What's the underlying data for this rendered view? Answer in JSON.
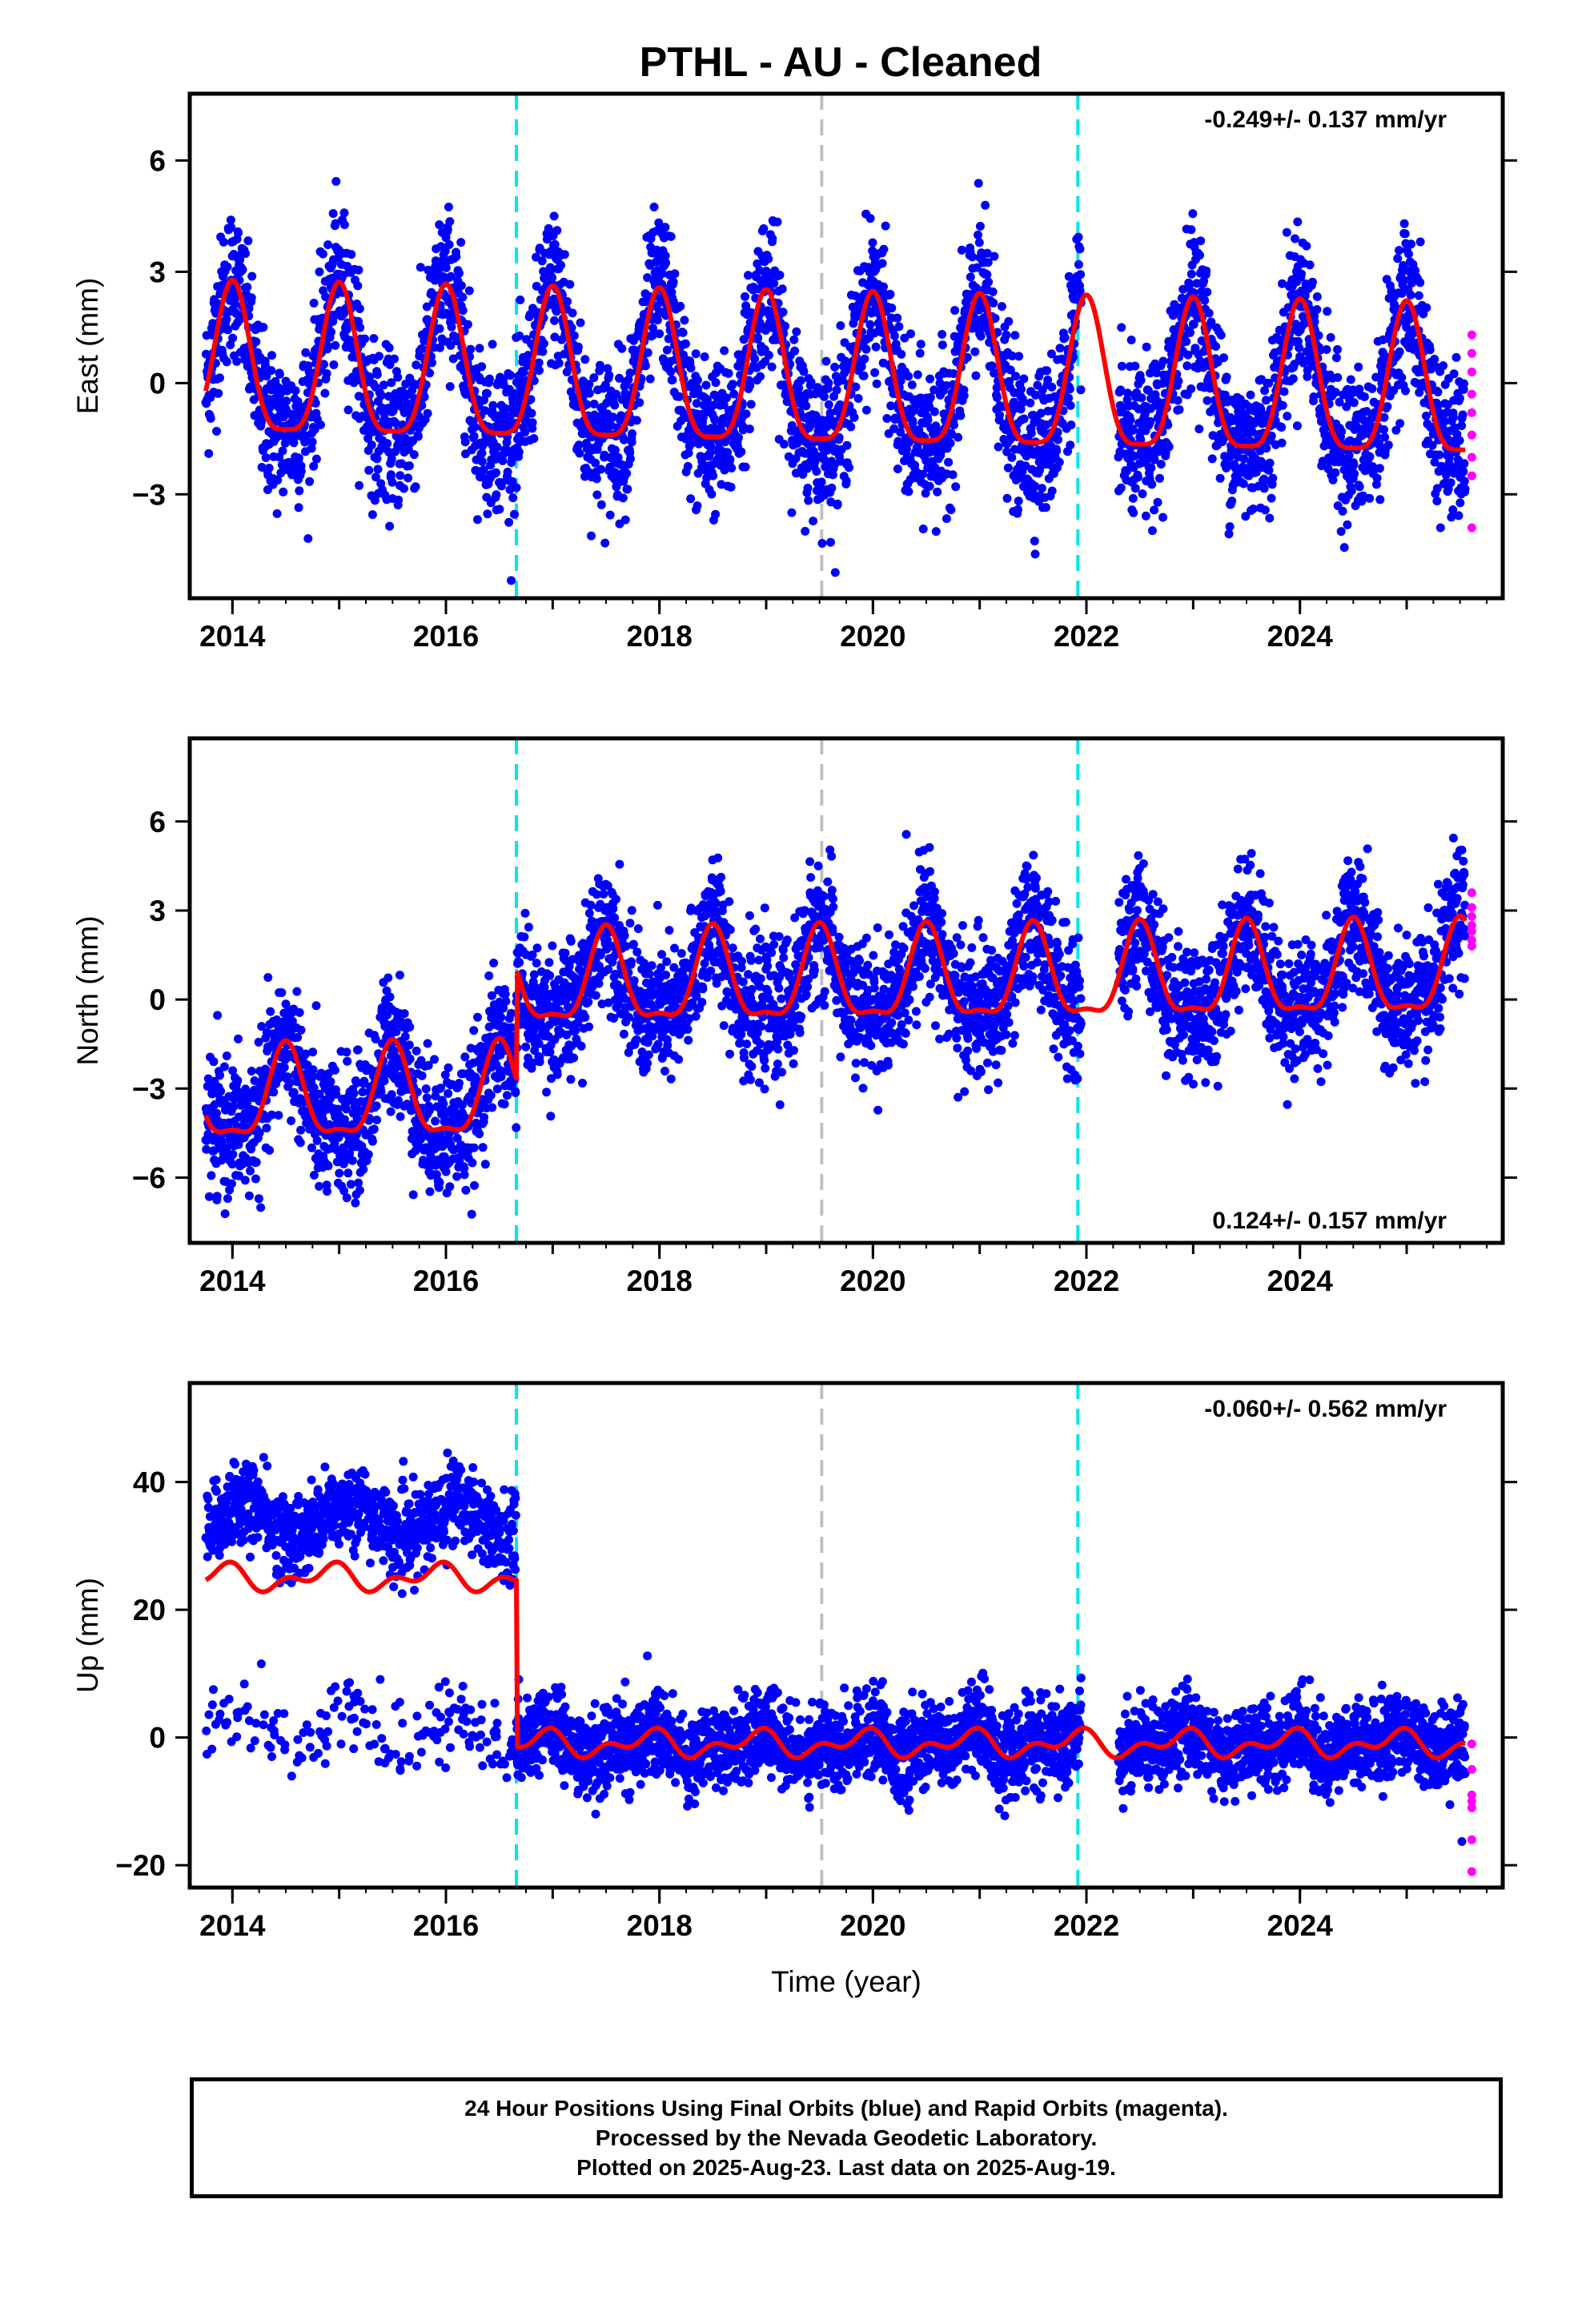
{
  "title": "PTHL  - AU - Cleaned",
  "colors": {
    "final_orbits": "#0000ff",
    "rapid_orbits": "#ff00ff",
    "model": "#ff0000",
    "equipment_change": "#00e5ee",
    "other_change": "#c0c0c0",
    "axis": "#000000"
  },
  "chart_data": [
    {
      "type": "scatter",
      "component": "east",
      "ylabel": "East (mm)",
      "xlabel": "",
      "xlim": [
        2013.6,
        2025.9
      ],
      "ylim": [
        -5.8,
        7.8
      ],
      "xticks": [
        2014,
        2016,
        2018,
        2020,
        2022,
        2024
      ],
      "yticks": [
        -3,
        0,
        3,
        6
      ],
      "rate": "-0.249+/- 0.137 mm/yr",
      "rate_position": "top-right",
      "equipment_changes": [
        2016.66,
        2021.92
      ],
      "other_changes": [
        2019.52
      ],
      "data_start": 2013.75,
      "data_end": 2025.55,
      "gaps": [
        [
          2021.95,
          2022.3
        ]
      ],
      "annual_amplitude": 2.0,
      "annual_phase": 2014.0,
      "semiannual_amplitude": 0.5,
      "scatter_sd": 1.0,
      "rapid_values": [
        1.3,
        0.8,
        0.3,
        -0.3,
        -0.8,
        -1.4,
        -2.0,
        -2.5,
        -3.9
      ]
    },
    {
      "type": "scatter",
      "component": "north",
      "ylabel": "North (mm)",
      "xlabel": "",
      "xlim": [
        2013.6,
        2025.9
      ],
      "ylim": [
        -8.2,
        8.8
      ],
      "xticks": [
        2014,
        2016,
        2018,
        2020,
        2022,
        2024
      ],
      "yticks": [
        -6,
        -3,
        0,
        3,
        6
      ],
      "rate": "0.124+/- 0.157 mm/yr",
      "rate_position": "bottom-right",
      "equipment_changes": [
        2016.66,
        2021.92
      ],
      "other_changes": [
        2019.52
      ],
      "data_start": 2013.75,
      "data_end": 2025.55,
      "gaps": [
        [
          2021.95,
          2022.3
        ]
      ],
      "pre_offset": -3.2,
      "post_offset": 0.6,
      "annual_amplitude": 1.5,
      "annual_phase": 2014.5,
      "semiannual_amplitude": 0.5,
      "scatter_sd": 1.1,
      "rapid_values": [
        3.6,
        3.1,
        2.8,
        2.5,
        2.3,
        2.0,
        1.8
      ]
    },
    {
      "type": "scatter",
      "component": "up",
      "ylabel": "Up (mm)",
      "xlabel": "Time (year)",
      "xlim": [
        2013.6,
        2025.9
      ],
      "ylim": [
        -23.5,
        55.5
      ],
      "xticks": [
        2014,
        2016,
        2018,
        2020,
        2022,
        2024
      ],
      "yticks": [
        -20,
        0,
        20,
        40
      ],
      "rate": "-0.060+/- 0.562 mm/yr",
      "rate_position": "top-right",
      "equipment_changes": [
        2016.66,
        2021.92
      ],
      "other_changes": [
        2019.52
      ],
      "data_start": 2013.75,
      "data_end": 2025.55,
      "gaps": [
        [
          2021.95,
          2022.3
        ]
      ],
      "pre_offset": 25,
      "post_offset": -1,
      "upper_cluster_center": 34,
      "lower_cluster_center": 1,
      "annual_amplitude": 3.0,
      "semiannual_amplitude": 1.2,
      "scatter_sd": 3.2,
      "rapid_values": [
        -1,
        -5,
        -9,
        -10,
        -11,
        -16,
        -21
      ]
    }
  ],
  "caption": {
    "line1": "24 Hour Positions Using Final Orbits (blue) and Rapid Orbits (magenta).",
    "line2": "Processed by the Nevada Geodetic Laboratory.",
    "line3": "Plotted on 2025-Aug-23. Last data on 2025-Aug-19."
  }
}
